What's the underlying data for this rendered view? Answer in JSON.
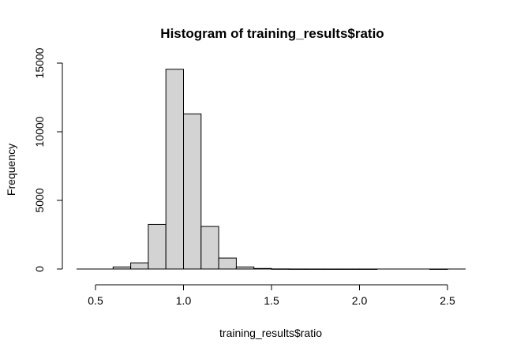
{
  "chart_data": {
    "type": "bar",
    "title": "Histogram of training_results$ratio",
    "xlabel": "training_results$ratio",
    "ylabel": "Frequency",
    "bin_width": 0.1,
    "bins": [
      {
        "start": 0.4,
        "end": 0.5,
        "count": 0
      },
      {
        "start": 0.5,
        "end": 0.6,
        "count": 0
      },
      {
        "start": 0.6,
        "end": 0.7,
        "count": 150
      },
      {
        "start": 0.7,
        "end": 0.8,
        "count": 450
      },
      {
        "start": 0.8,
        "end": 0.9,
        "count": 3250
      },
      {
        "start": 0.9,
        "end": 1.0,
        "count": 14550
      },
      {
        "start": 1.0,
        "end": 1.1,
        "count": 11300
      },
      {
        "start": 1.1,
        "end": 1.2,
        "count": 3100
      },
      {
        "start": 1.2,
        "end": 1.3,
        "count": 800
      },
      {
        "start": 1.3,
        "end": 1.4,
        "count": 150
      },
      {
        "start": 1.4,
        "end": 1.5,
        "count": 40
      },
      {
        "start": 1.5,
        "end": 1.6,
        "count": 8
      },
      {
        "start": 1.6,
        "end": 1.7,
        "count": 3
      },
      {
        "start": 1.7,
        "end": 1.8,
        "count": 2
      },
      {
        "start": 1.8,
        "end": 1.9,
        "count": 1
      },
      {
        "start": 1.9,
        "end": 2.0,
        "count": 1
      },
      {
        "start": 2.0,
        "end": 2.1,
        "count": 1
      },
      {
        "start": 2.1,
        "end": 2.2,
        "count": 0
      },
      {
        "start": 2.2,
        "end": 2.3,
        "count": 0
      },
      {
        "start": 2.3,
        "end": 2.4,
        "count": 0
      },
      {
        "start": 2.4,
        "end": 2.5,
        "count": 1
      },
      {
        "start": 2.5,
        "end": 2.6,
        "count": 0
      }
    ],
    "x_ticks": [
      0.5,
      1.0,
      1.5,
      2.0,
      2.5
    ],
    "x_tick_labels": [
      "0.5",
      "1.0",
      "1.5",
      "2.0",
      "2.5"
    ],
    "y_ticks": [
      0,
      5000,
      10000,
      15000
    ],
    "y_tick_labels": [
      "0",
      "5000",
      "10000",
      "15000"
    ],
    "xlim": [
      0.4,
      2.6
    ],
    "ylim": [
      0,
      15000
    ],
    "bar_fill": "#d3d3d3",
    "bar_stroke": "#000000",
    "grid": false,
    "legend": "none"
  }
}
